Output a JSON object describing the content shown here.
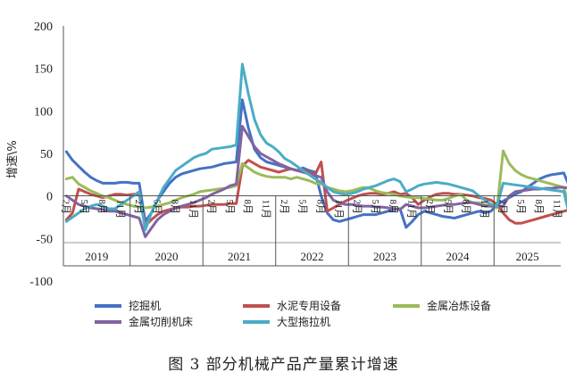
{
  "chart_data": {
    "type": "line",
    "title": "",
    "ylabel": "增速\\%",
    "ylim": [
      -100,
      200
    ],
    "yticks": [
      -100,
      -50,
      0,
      50,
      100,
      150,
      200
    ],
    "x_start": "2019-02",
    "x_end": "2025-11",
    "month_tick_labels": [
      "2月",
      "5月",
      "8月",
      "11月"
    ],
    "years": [
      "2019",
      "2020",
      "2021",
      "2022",
      "2023",
      "2024",
      "2025"
    ],
    "legend_position": "bottom",
    "series": [
      {
        "name": "挖掘机",
        "color": "#4472C4",
        "start": "2019-02",
        "values": [
          52,
          42,
          35,
          28,
          22,
          18,
          15,
          15,
          15,
          16,
          16,
          15,
          15,
          -30,
          -20,
          -5,
          5,
          15,
          22,
          26,
          28,
          30,
          32,
          33,
          34,
          36,
          38,
          39,
          40,
          113,
          80,
          55,
          45,
          40,
          38,
          36,
          34,
          32,
          30,
          33,
          30,
          28,
          0,
          -20,
          -28,
          -30,
          -28,
          -26,
          -24,
          -22,
          -22,
          -22,
          -20,
          -18,
          -16,
          -15,
          -37,
          -30,
          -22,
          -18,
          -20,
          -22,
          -24,
          -25,
          -26,
          -24,
          -22,
          -20,
          -18,
          -20,
          -18,
          -10,
          -6,
          -2,
          2,
          5,
          10,
          15,
          20,
          23,
          25,
          26,
          27,
          10,
          12,
          14,
          14,
          14,
          14,
          14,
          14,
          14,
          14,
          14,
          13,
          13
        ]
      },
      {
        "name": "水泥专用设备",
        "color": "#C0504D",
        "start": "2019-02",
        "values": [
          -28,
          -20,
          8,
          5,
          2,
          0,
          -2,
          0,
          2,
          2,
          1,
          2,
          2,
          -35,
          -28,
          -22,
          -18,
          -16,
          -14,
          -13,
          -13,
          -12,
          -12,
          -11,
          -10,
          -10,
          -10,
          -9,
          -9,
          35,
          42,
          38,
          34,
          32,
          30,
          28,
          30,
          32,
          30,
          30,
          28,
          25,
          40,
          -18,
          -14,
          -10,
          -6,
          -3,
          0,
          2,
          3,
          3,
          2,
          3,
          5,
          2,
          3,
          -2,
          -10,
          -5,
          -1,
          2,
          3,
          3,
          2,
          2,
          1,
          0,
          -2,
          -3,
          -5,
          -10,
          -20,
          -28,
          -32,
          -32,
          -30,
          -28,
          -26,
          -24,
          -22,
          -20,
          -18,
          -16,
          5,
          6,
          8,
          10,
          10,
          8,
          6,
          0,
          -2,
          -3,
          -4,
          -5,
          22
        ]
      },
      {
        "name": "金属冶炼设备",
        "color": "#9BBB59",
        "start": "2019-02",
        "values": [
          20,
          22,
          14,
          10,
          6,
          3,
          0,
          -2,
          -5,
          -8,
          -10,
          -12,
          -13,
          -14,
          -13,
          -12,
          -10,
          -8,
          -5,
          -2,
          0,
          2,
          5,
          6,
          7,
          8,
          9,
          10,
          12,
          38,
          33,
          28,
          25,
          23,
          22,
          22,
          22,
          20,
          22,
          20,
          18,
          15,
          14,
          10,
          8,
          6,
          5,
          6,
          8,
          10,
          9,
          6,
          4,
          3,
          2,
          0,
          -1,
          -2,
          -2,
          -3,
          -4,
          -5,
          -5,
          -3,
          0,
          2,
          -5,
          -8,
          -8,
          -10,
          -12,
          -14,
          53,
          38,
          30,
          25,
          22,
          20,
          18,
          16,
          14,
          12,
          10,
          -15,
          -20,
          -22,
          -23,
          -22,
          -20,
          -20,
          -19,
          -18,
          -17,
          -16,
          -17,
          -17
        ]
      },
      {
        "name": "金属切削机床",
        "color": "#8064A2",
        "start": "2019-02",
        "values": [
          0,
          -5,
          -10,
          -12,
          -14,
          -15,
          -16,
          -18,
          -18,
          -20,
          -22,
          -24,
          -26,
          -48,
          -38,
          -28,
          -22,
          -18,
          -14,
          -12,
          -10,
          -8,
          -5,
          -2,
          2,
          5,
          8,
          12,
          14,
          82,
          70,
          58,
          50,
          46,
          42,
          38,
          35,
          32,
          30,
          28,
          26,
          24,
          22,
          5,
          -5,
          -8,
          -10,
          -10,
          -11,
          -12,
          -12,
          -13,
          -13,
          -14,
          -15,
          -16,
          -10,
          -12,
          -14,
          -14,
          -13,
          -12,
          -11,
          -10,
          -10,
          -9,
          -8,
          -8,
          -10,
          -12,
          -12,
          -12,
          -12,
          0,
          5,
          6,
          7,
          8,
          8,
          9,
          9,
          10,
          10,
          9,
          12,
          20,
          18,
          15,
          14,
          13,
          13,
          14,
          15,
          17,
          18,
          16,
          15
        ]
      },
      {
        "name": "大型拖拉机",
        "color": "#4BACC6",
        "start": "2019-02",
        "values": [
          -30,
          -25,
          -20,
          -15,
          -12,
          -10,
          -12,
          -15,
          -15,
          -10,
          -5,
          0,
          5,
          -40,
          -20,
          -5,
          10,
          20,
          30,
          35,
          40,
          45,
          48,
          50,
          55,
          56,
          57,
          58,
          60,
          155,
          120,
          90,
          72,
          62,
          58,
          52,
          44,
          40,
          35,
          30,
          25,
          20,
          16,
          10,
          5,
          3,
          2,
          3,
          5,
          8,
          10,
          12,
          15,
          18,
          20,
          17,
          5,
          8,
          12,
          14,
          15,
          16,
          15,
          14,
          12,
          10,
          8,
          6,
          0,
          -5,
          -10,
          -12,
          15,
          14,
          13,
          12,
          11,
          10,
          9,
          8,
          7,
          6,
          5,
          -25,
          -20,
          -18,
          -15,
          -10,
          -8,
          -5,
          -3,
          -2,
          0,
          0,
          -3,
          -4
        ]
      }
    ]
  },
  "caption": "图 3  部分机械产品产量累计增速"
}
